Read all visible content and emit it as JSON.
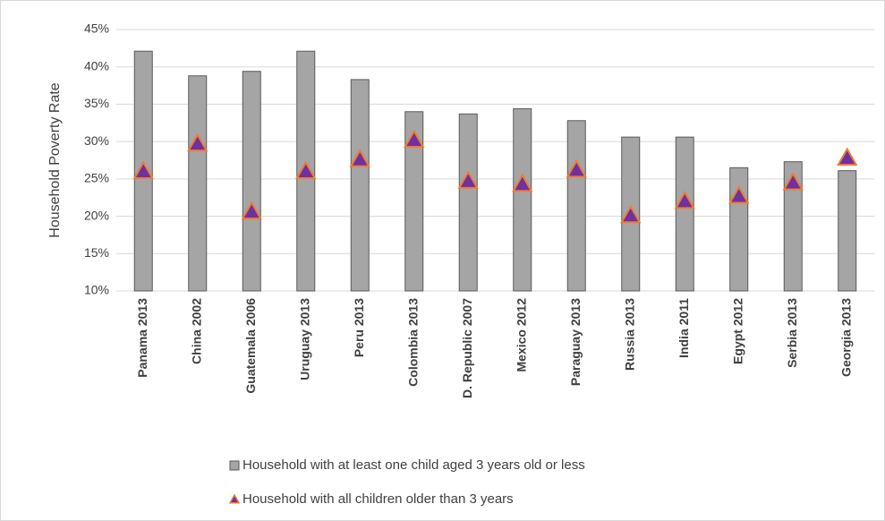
{
  "chart_data": {
    "type": "bar",
    "y_label": "Household Poverty Rate",
    "categories": [
      "Panama 2013",
      "China 2002",
      "Guatemala 2006",
      "Uruguay 2013",
      "Peru 2013",
      "Colombia 2013",
      "D. Republic 2007",
      "Mexico 2012",
      "Paraguay 2013",
      "Russia 2013",
      "India 2011",
      "Egypt 2012",
      "Serbia 2013",
      "Georgia 2013"
    ],
    "series": [
      {
        "name": "Household with at least one child aged 3 years old or less",
        "type": "bar",
        "color": "#a5a5a5",
        "values": [
          42.1,
          38.8,
          39.4,
          42.1,
          38.3,
          34.0,
          33.7,
          34.4,
          32.8,
          30.6,
          30.6,
          26.5,
          27.3,
          26.1
        ]
      },
      {
        "name": "Household with all children older than 3 years",
        "type": "triangle",
        "color": "#7030a0",
        "values": [
          26.0,
          29.7,
          20.6,
          26.0,
          27.6,
          30.2,
          24.7,
          24.3,
          26.2,
          20.1,
          22.0,
          22.7,
          24.5,
          27.8
        ]
      }
    ],
    "ylim": [
      10,
      45
    ],
    "yticks": [
      {
        "value": 10,
        "label": "10%"
      },
      {
        "value": 15,
        "label": "15%"
      },
      {
        "value": 20,
        "label": "20%"
      },
      {
        "value": 25,
        "label": "25%"
      },
      {
        "value": 30,
        "label": "30%"
      },
      {
        "value": 35,
        "label": "35%"
      },
      {
        "value": 40,
        "label": "40%"
      },
      {
        "value": 45,
        "label": "45%"
      }
    ],
    "grid": true
  }
}
